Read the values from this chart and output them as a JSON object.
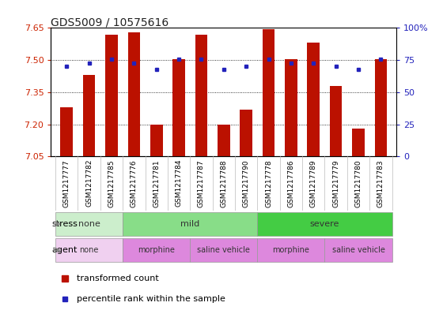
{
  "title": "GDS5009 / 10575616",
  "samples": [
    "GSM1217777",
    "GSM1217782",
    "GSM1217785",
    "GSM1217776",
    "GSM1217781",
    "GSM1217784",
    "GSM1217787",
    "GSM1217788",
    "GSM1217790",
    "GSM1217778",
    "GSM1217786",
    "GSM1217789",
    "GSM1217779",
    "GSM1217780",
    "GSM1217783"
  ],
  "bar_values": [
    7.28,
    7.43,
    7.62,
    7.63,
    7.2,
    7.505,
    7.62,
    7.2,
    7.27,
    7.645,
    7.505,
    7.58,
    7.38,
    7.18,
    7.505
  ],
  "blue_values": [
    7.47,
    7.485,
    7.505,
    7.485,
    7.455,
    7.505,
    7.505,
    7.455,
    7.47,
    7.505,
    7.485,
    7.485,
    7.47,
    7.455,
    7.505
  ],
  "bar_bottom": 7.05,
  "ylim": [
    7.05,
    7.65
  ],
  "yticks_left": [
    7.05,
    7.2,
    7.35,
    7.5,
    7.65
  ],
  "yticks_right_vals": [
    0,
    25,
    50,
    75,
    100
  ],
  "ylim_right": [
    0,
    100
  ],
  "bar_color": "#bb1100",
  "blue_color": "#2222bb",
  "stress_groups": [
    {
      "label": "none",
      "start": 0,
      "end": 3,
      "color": "#cceecc"
    },
    {
      "label": "mild",
      "start": 3,
      "end": 9,
      "color": "#88dd88"
    },
    {
      "label": "severe",
      "start": 9,
      "end": 15,
      "color": "#44cc44"
    }
  ],
  "agent_groups": [
    {
      "label": "none",
      "start": 0,
      "end": 3,
      "color": "#f0d0f0"
    },
    {
      "label": "morphine",
      "start": 3,
      "end": 6,
      "color": "#dd88dd"
    },
    {
      "label": "saline vehicle",
      "start": 6,
      "end": 9,
      "color": "#dd88dd"
    },
    {
      "label": "morphine",
      "start": 9,
      "end": 12,
      "color": "#dd88dd"
    },
    {
      "label": "saline vehicle",
      "start": 12,
      "end": 15,
      "color": "#dd88dd"
    }
  ],
  "grid_yticks": [
    7.2,
    7.35,
    7.5
  ],
  "left_tick_color": "#cc2200",
  "right_tick_color": "#2222bb",
  "xlabel_bg": "#dddddd"
}
